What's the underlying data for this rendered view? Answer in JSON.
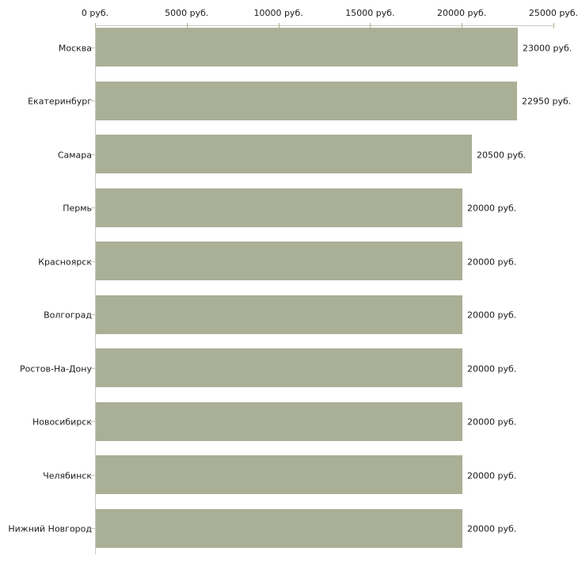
{
  "chart_data": {
    "type": "bar",
    "orientation": "horizontal",
    "title": "",
    "xlabel": "",
    "ylabel": "",
    "unit": "руб.",
    "categories": [
      "Москва",
      "Екатеринбург",
      "Самара",
      "Пермь",
      "Красноярск",
      "Волгоград",
      "Ростов-На-Дону",
      "Новосибирск",
      "Челябинск",
      "Нижний Новгород"
    ],
    "values": [
      23000,
      22950,
      20500,
      20000,
      20000,
      20000,
      20000,
      20000,
      20000,
      20000
    ],
    "value_labels": [
      "23000 руб.",
      "22950 руб.",
      "20500 руб.",
      "20000 руб.",
      "20000 руб.",
      "20000 руб.",
      "20000 руб.",
      "20000 руб.",
      "20000 руб.",
      "20000 руб."
    ],
    "x_axis": {
      "position": "top",
      "range": [
        0,
        25000
      ],
      "ticks": [
        0,
        5000,
        10000,
        15000,
        20000,
        25000
      ],
      "tick_labels": [
        "0 руб.",
        "5000 руб.",
        "10000 руб.",
        "15000 руб.",
        "20000 руб.",
        "25000 руб."
      ]
    },
    "legend": null,
    "grid": false,
    "colors": {
      "bar": "#aab096",
      "axis_line": "#c9c9bf",
      "axis_tick": "#b2b292",
      "category_tick": "#c6c6c0",
      "text": "#1a1a1a",
      "background": "#ffffff"
    }
  }
}
